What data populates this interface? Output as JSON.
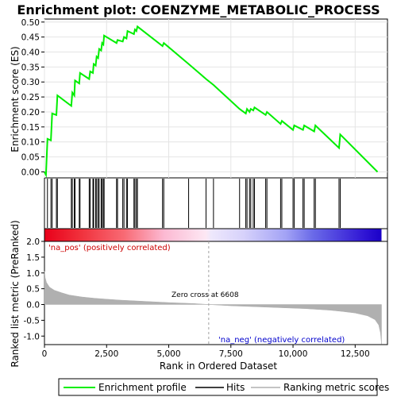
{
  "chart_data": {
    "type": "line",
    "title": "Enrichment plot: COENZYME_METABOLIC_PROCESS",
    "xlabel": "Rank in Ordered Dataset",
    "ylabel_top": "Enrichment score (ES)",
    "ylabel_bottom": "Ranked list metric (PreRanked)",
    "xlim": [
      0,
      13800
    ],
    "xticks": [
      0,
      2500,
      5000,
      7500,
      10000,
      12500
    ],
    "es_ylim": [
      -0.02,
      0.51
    ],
    "es_yticks": [
      "0.00",
      "0.05",
      "0.10",
      "0.15",
      "0.20",
      "0.25",
      "0.30",
      "0.35",
      "0.40",
      "0.45",
      "0.50"
    ],
    "metric_ylim": [
      -1.27,
      2.0
    ],
    "metric_yticks": [
      "-1.0",
      "-0.5",
      "0.0",
      "0.5",
      "1.0",
      "1.5",
      "2.0"
    ],
    "es_curve": [
      [
        0,
        0
      ],
      [
        60,
        -0.01
      ],
      [
        120,
        0.11
      ],
      [
        260,
        0.105
      ],
      [
        310,
        0.195
      ],
      [
        480,
        0.19
      ],
      [
        520,
        0.255
      ],
      [
        1080,
        0.22
      ],
      [
        1120,
        0.265
      ],
      [
        1200,
        0.255
      ],
      [
        1230,
        0.305
      ],
      [
        1400,
        0.295
      ],
      [
        1430,
        0.33
      ],
      [
        1800,
        0.31
      ],
      [
        1840,
        0.335
      ],
      [
        1950,
        0.33
      ],
      [
        1980,
        0.36
      ],
      [
        2060,
        0.355
      ],
      [
        2100,
        0.385
      ],
      [
        2160,
        0.38
      ],
      [
        2200,
        0.41
      ],
      [
        2280,
        0.405
      ],
      [
        2320,
        0.43
      ],
      [
        2370,
        0.425
      ],
      [
        2400,
        0.455
      ],
      [
        2900,
        0.43
      ],
      [
        2940,
        0.44
      ],
      [
        3150,
        0.435
      ],
      [
        3200,
        0.45
      ],
      [
        3300,
        0.445
      ],
      [
        3340,
        0.47
      ],
      [
        3600,
        0.46
      ],
      [
        3640,
        0.475
      ],
      [
        3700,
        0.47
      ],
      [
        3740,
        0.485
      ],
      [
        4750,
        0.42
      ],
      [
        4800,
        0.43
      ],
      [
        5800,
        0.36
      ],
      [
        6500,
        0.31
      ],
      [
        6800,
        0.29
      ],
      [
        7850,
        0.21
      ],
      [
        8100,
        0.195
      ],
      [
        8150,
        0.21
      ],
      [
        8250,
        0.2
      ],
      [
        8300,
        0.21
      ],
      [
        8400,
        0.205
      ],
      [
        8450,
        0.215
      ],
      [
        8900,
        0.19
      ],
      [
        8950,
        0.2
      ],
      [
        9500,
        0.16
      ],
      [
        9550,
        0.17
      ],
      [
        10000,
        0.14
      ],
      [
        10050,
        0.155
      ],
      [
        10400,
        0.14
      ],
      [
        10450,
        0.155
      ],
      [
        10850,
        0.135
      ],
      [
        10900,
        0.155
      ],
      [
        11850,
        0.08
      ],
      [
        11900,
        0.125
      ],
      [
        13400,
        0.0
      ]
    ],
    "hits": [
      120,
      260,
      310,
      480,
      520,
      1080,
      1120,
      1200,
      1230,
      1400,
      1430,
      1800,
      1840,
      1950,
      1980,
      2060,
      2100,
      2160,
      2200,
      2280,
      2320,
      2370,
      2400,
      2900,
      2940,
      3150,
      3200,
      3300,
      3340,
      3600,
      3640,
      3700,
      3740,
      4750,
      4800,
      5800,
      6500,
      6800,
      7850,
      8100,
      8150,
      8250,
      8300,
      8400,
      8450,
      8900,
      8950,
      9500,
      9550,
      10000,
      10050,
      10400,
      10450,
      10850,
      10900,
      11850,
      11900
    ],
    "metric_curve": [
      [
        0,
        1.05
      ],
      [
        30,
        0.85
      ],
      [
        80,
        0.7
      ],
      [
        200,
        0.55
      ],
      [
        400,
        0.45
      ],
      [
        700,
        0.37
      ],
      [
        1000,
        0.3
      ],
      [
        1500,
        0.24
      ],
      [
        2000,
        0.2
      ],
      [
        2500,
        0.17
      ],
      [
        3000,
        0.14
      ],
      [
        4000,
        0.1
      ],
      [
        5000,
        0.06
      ],
      [
        6000,
        0.03
      ],
      [
        6608,
        0.0
      ],
      [
        7500,
        -0.04
      ],
      [
        8500,
        -0.07
      ],
      [
        9500,
        -0.1
      ],
      [
        10500,
        -0.13
      ],
      [
        11500,
        -0.18
      ],
      [
        12000,
        -0.22
      ],
      [
        12500,
        -0.27
      ],
      [
        13000,
        -0.36
      ],
      [
        13300,
        -0.48
      ],
      [
        13450,
        -0.65
      ],
      [
        13520,
        -0.9
      ],
      [
        13560,
        -1.25
      ]
    ],
    "zero_cross_label": "Zero cross at 6608",
    "zero_cross": 6608,
    "pos_label": "'na_pos' (positively correlated)",
    "neg_label": "'na_neg' (negatively correlated)",
    "heat_stops": [
      {
        "x": 0,
        "color": "#e8001a"
      },
      {
        "x": 1400,
        "color": "#f02f3a"
      },
      {
        "x": 3200,
        "color": "#f86a74"
      },
      {
        "x": 4800,
        "color": "#fcb9d2"
      },
      {
        "x": 6500,
        "color": "#fde8f4"
      },
      {
        "x": 6700,
        "color": "#eee8fc"
      },
      {
        "x": 8000,
        "color": "#d7d2fb"
      },
      {
        "x": 9700,
        "color": "#a3a3f5"
      },
      {
        "x": 10800,
        "color": "#6a6ae8"
      },
      {
        "x": 12900,
        "color": "#2f14d4"
      },
      {
        "x": 13560,
        "color": "#1a00c8"
      }
    ],
    "legend": [
      "Enrichment profile",
      "Hits",
      "Ranking metric scores"
    ],
    "colors": {
      "es_line": "#00ee00",
      "hit": "#000000",
      "metric_fill": "#b0b0b0",
      "zero_line": "#a0a0a0"
    }
  }
}
